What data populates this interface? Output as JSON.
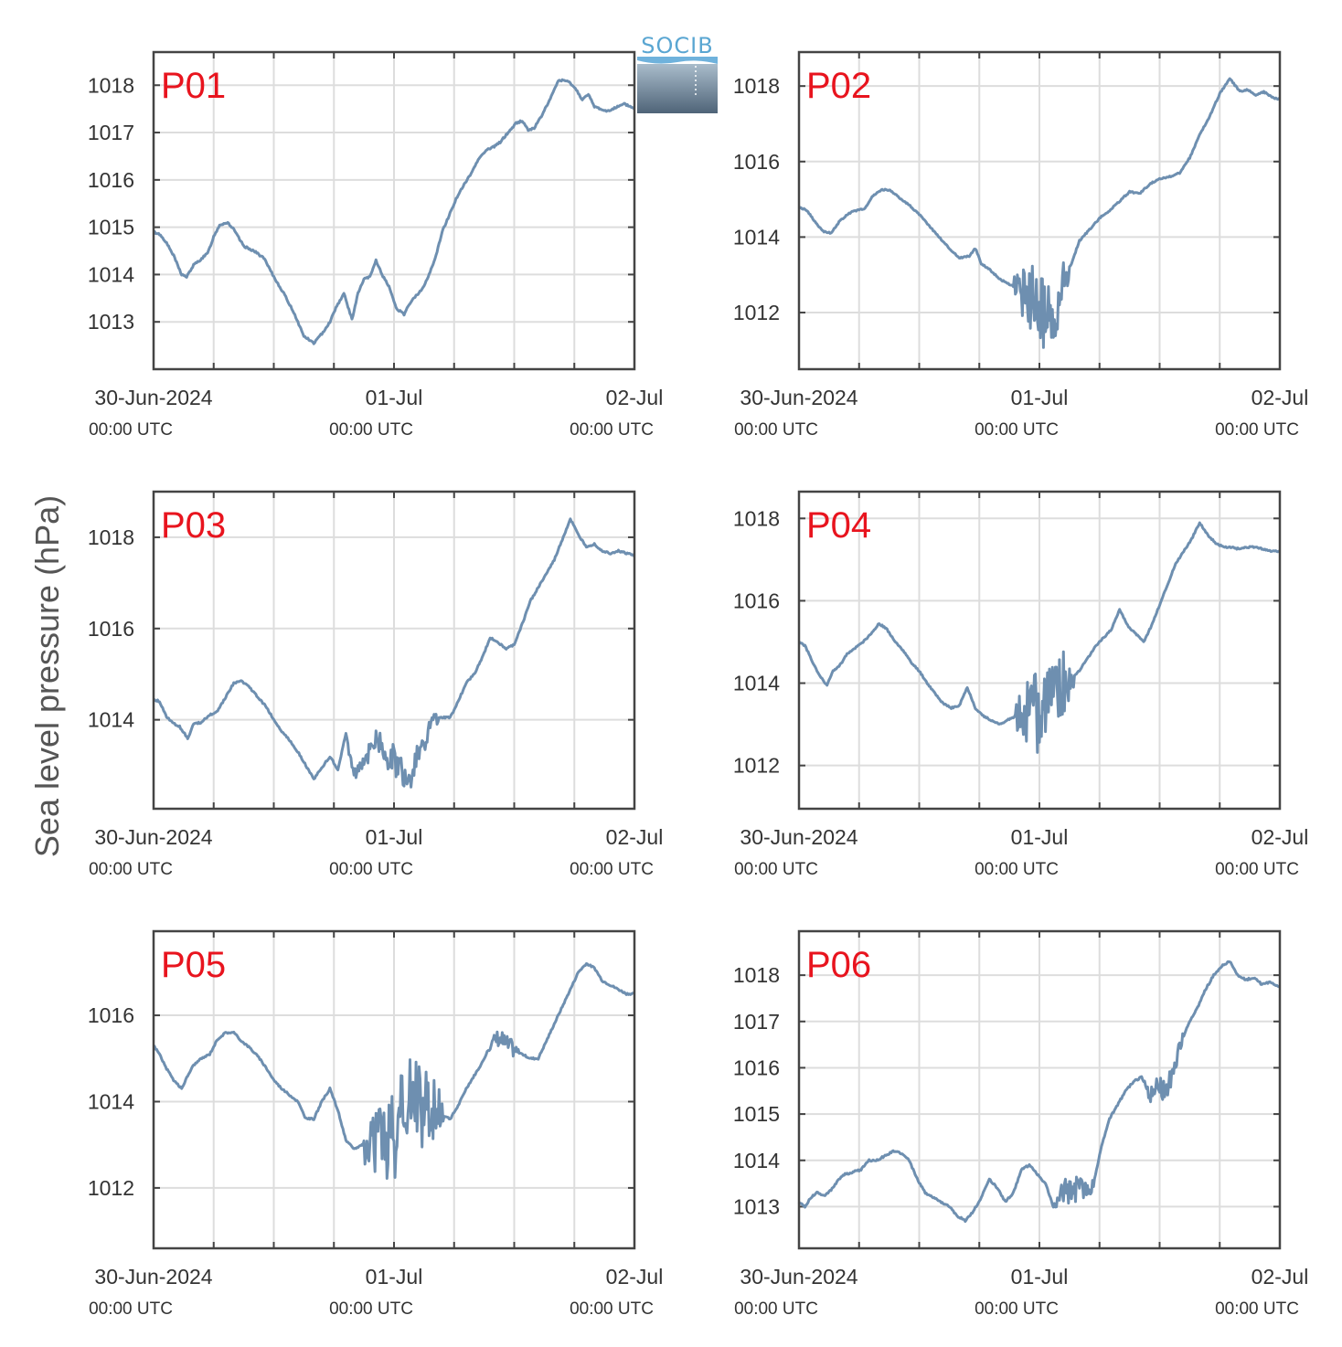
{
  "figure": {
    "ylabel": "Sea level pressure (hPa)",
    "logo_text": "SOCIB"
  },
  "colors": {
    "line": "#6e8fb0",
    "grid": "#dddddd",
    "axis": "#444444",
    "panel_label": "#e8141e"
  },
  "chart_data": [
    {
      "type": "line",
      "label": "P01",
      "x_ticks": [
        "30-Jun-2024",
        "01-Jul",
        "02-Jul"
      ],
      "x_tick_times": [
        "00:00 UTC",
        "00:00 UTC",
        "00:00 UTC"
      ],
      "xlim": [
        0,
        48
      ],
      "ylim": [
        1012.0,
        1018.7
      ],
      "yticks": [
        1013,
        1014,
        1015,
        1016,
        1017,
        1018
      ],
      "grid": true,
      "noise": [],
      "series": [
        {
          "x": [
            0,
            0.6,
            1.2,
            2,
            2.8,
            3.3,
            4,
            4.6,
            5.4,
            6,
            6.6,
            7.4,
            8,
            9,
            10,
            11,
            12,
            13,
            14,
            15,
            16,
            16.8,
            17.6,
            18.2,
            19,
            19.8,
            20.4,
            21,
            21.6,
            22.2,
            22.8,
            23.6,
            24.2,
            25,
            25.6,
            26.4,
            27,
            27.6,
            28.2,
            28.8,
            29.6,
            30.2,
            31,
            31.6,
            32.2,
            32.8,
            33.4,
            34,
            34.6,
            35.2,
            35.6,
            36.2,
            36.8,
            37.4,
            38,
            38.6,
            39.2,
            39.8,
            40.4,
            41,
            41.6,
            42.2,
            42.8,
            43.4,
            44,
            44.6,
            45.2,
            45.8,
            46.4,
            47,
            47.6,
            48
          ],
          "y": [
            1014.9,
            1014.85,
            1014.7,
            1014.4,
            1014.0,
            1013.95,
            1014.2,
            1014.3,
            1014.45,
            1014.8,
            1015.05,
            1015.1,
            1014.95,
            1014.6,
            1014.5,
            1014.35,
            1013.95,
            1013.6,
            1013.2,
            1012.7,
            1012.55,
            1012.75,
            1013.0,
            1013.3,
            1013.6,
            1013.05,
            1013.6,
            1013.9,
            1013.95,
            1014.3,
            1014.0,
            1013.7,
            1013.3,
            1013.15,
            1013.4,
            1013.6,
            1013.75,
            1014.05,
            1014.4,
            1014.9,
            1015.3,
            1015.6,
            1015.9,
            1016.1,
            1016.35,
            1016.55,
            1016.65,
            1016.7,
            1016.8,
            1016.95,
            1017.05,
            1017.2,
            1017.25,
            1017.05,
            1017.1,
            1017.3,
            1017.55,
            1017.8,
            1018.1,
            1018.1,
            1018.05,
            1017.9,
            1017.7,
            1017.8,
            1017.55,
            1017.5,
            1017.45,
            1017.5,
            1017.55,
            1017.6,
            1017.55,
            1017.5
          ]
        }
      ]
    },
    {
      "type": "line",
      "label": "P02",
      "x_ticks": [
        "30-Jun-2024",
        "01-Jul",
        "02-Jul"
      ],
      "x_tick_times": [
        "00:00 UTC",
        "00:00 UTC",
        "00:00 UTC"
      ],
      "xlim": [
        0,
        48
      ],
      "ylim": [
        1010.5,
        1018.9
      ],
      "yticks": [
        1012,
        1014,
        1016,
        1018
      ],
      "grid": true,
      "noise": [
        [
          21.5,
          27.0,
          1.0
        ]
      ],
      "series": [
        {
          "x": [
            0,
            0.8,
            1.6,
            2.4,
            3.2,
            4,
            4.8,
            5.6,
            6.6,
            7.4,
            8.2,
            9,
            10,
            11,
            12,
            13,
            14,
            15,
            16,
            17,
            17.6,
            18.2,
            19,
            20,
            20.6,
            21.4,
            22.2,
            23,
            24,
            24.8,
            25.6,
            26.4,
            27.2,
            28,
            29,
            30,
            31,
            32,
            33,
            34,
            35,
            36,
            37,
            38,
            39,
            40,
            41,
            42,
            43,
            44,
            44.8,
            45.6,
            46.4,
            47.2,
            48
          ],
          "y": [
            1014.8,
            1014.7,
            1014.4,
            1014.15,
            1014.1,
            1014.4,
            1014.6,
            1014.7,
            1014.75,
            1015.1,
            1015.25,
            1015.25,
            1015.05,
            1014.85,
            1014.6,
            1014.3,
            1014.0,
            1013.7,
            1013.45,
            1013.5,
            1013.7,
            1013.3,
            1013.15,
            1012.9,
            1012.8,
            1012.7,
            1012.5,
            1012.4,
            1012.2,
            1011.9,
            1011.6,
            1012.9,
            1013.3,
            1013.9,
            1014.2,
            1014.5,
            1014.7,
            1014.95,
            1015.2,
            1015.15,
            1015.4,
            1015.55,
            1015.6,
            1015.7,
            1016.1,
            1016.7,
            1017.2,
            1017.8,
            1018.2,
            1017.85,
            1017.9,
            1017.75,
            1017.85,
            1017.7,
            1017.65
          ]
        }
      ]
    },
    {
      "type": "line",
      "label": "P03",
      "x_ticks": [
        "30-Jun-2024",
        "01-Jul",
        "02-Jul"
      ],
      "x_tick_times": [
        "00:00 UTC",
        "00:00 UTC",
        "00:00 UTC"
      ],
      "xlim": [
        0,
        48
      ],
      "ylim": [
        1012.05,
        1019.0
      ],
      "yticks": [
        1014,
        1016,
        1018
      ],
      "grid": true,
      "noise": [
        [
          19.5,
          28.5,
          0.35
        ]
      ],
      "series": [
        {
          "x": [
            0,
            0.6,
            1.2,
            1.8,
            2.6,
            3.4,
            4,
            4.8,
            5.6,
            6.4,
            7.2,
            8,
            8.8,
            9.6,
            10.4,
            11.2,
            12,
            12.8,
            13.6,
            14.4,
            15.2,
            16,
            16.8,
            17.6,
            18.4,
            19.2,
            20,
            20.8,
            21.6,
            22.4,
            23.2,
            24,
            24.8,
            25.6,
            26.4,
            27.2,
            28,
            28.8,
            29.6,
            30.4,
            31.2,
            32,
            32.8,
            33.6,
            34.4,
            35.2,
            36,
            36.8,
            37.6,
            38.4,
            39.2,
            40,
            40.8,
            41.6,
            42.4,
            43.2,
            44,
            44.8,
            45.6,
            46.4,
            47.2,
            48
          ],
          "y": [
            1014.45,
            1014.4,
            1014.1,
            1013.95,
            1013.85,
            1013.6,
            1013.9,
            1013.95,
            1014.1,
            1014.2,
            1014.5,
            1014.8,
            1014.85,
            1014.7,
            1014.5,
            1014.3,
            1014.0,
            1013.75,
            1013.55,
            1013.3,
            1013.0,
            1012.7,
            1012.95,
            1013.2,
            1012.9,
            1013.7,
            1012.75,
            1013.05,
            1013.4,
            1013.5,
            1013.3,
            1013.15,
            1012.85,
            1012.7,
            1013.3,
            1013.6,
            1014.0,
            1014.05,
            1014.05,
            1014.4,
            1014.8,
            1015.0,
            1015.35,
            1015.8,
            1015.7,
            1015.55,
            1015.65,
            1016.1,
            1016.6,
            1016.9,
            1017.2,
            1017.5,
            1017.95,
            1018.4,
            1018.05,
            1017.8,
            1017.85,
            1017.7,
            1017.65,
            1017.7,
            1017.65,
            1017.6
          ]
        }
      ]
    },
    {
      "type": "line",
      "label": "P04",
      "x_ticks": [
        "30-Jun-2024",
        "01-Jul",
        "02-Jul"
      ],
      "x_tick_times": [
        "00:00 UTC",
        "00:00 UTC",
        "00:00 UTC"
      ],
      "xlim": [
        0,
        48
      ],
      "ylim": [
        1010.95,
        1018.65
      ],
      "yticks": [
        1012,
        1014,
        1016,
        1018
      ],
      "grid": true,
      "noise": [
        [
          21.5,
          27.5,
          1.1
        ]
      ],
      "series": [
        {
          "x": [
            0,
            0.6,
            1.2,
            2,
            2.8,
            3.4,
            4,
            4.8,
            5.6,
            6.4,
            7.2,
            8,
            8.8,
            9.6,
            10.4,
            11.2,
            12,
            12.8,
            13.6,
            14.4,
            15.2,
            16,
            16.8,
            17.6,
            18.4,
            19.2,
            20,
            20.8,
            21.6,
            22.4,
            23.2,
            24,
            24.8,
            25.6,
            26.4,
            27.2,
            28,
            28.8,
            29.6,
            30.4,
            31.2,
            32,
            32.8,
            33.6,
            34.4,
            35.2,
            36,
            36.8,
            37.6,
            38.4,
            39.2,
            40,
            40.8,
            41.6,
            42.4,
            43.2,
            44,
            44.8,
            45.6,
            46.4,
            47.2,
            48
          ],
          "y": [
            1015.0,
            1014.9,
            1014.6,
            1014.2,
            1013.95,
            1014.3,
            1014.4,
            1014.7,
            1014.85,
            1015.0,
            1015.2,
            1015.45,
            1015.3,
            1015.0,
            1014.8,
            1014.5,
            1014.3,
            1014.0,
            1013.75,
            1013.5,
            1013.4,
            1013.45,
            1013.9,
            1013.4,
            1013.2,
            1013.1,
            1013.0,
            1013.1,
            1013.2,
            1013.3,
            1013.2,
            1013.4,
            1013.7,
            1013.85,
            1014.0,
            1014.1,
            1014.3,
            1014.6,
            1014.9,
            1015.1,
            1015.3,
            1015.8,
            1015.4,
            1015.2,
            1015.0,
            1015.4,
            1015.9,
            1016.4,
            1016.9,
            1017.2,
            1017.5,
            1017.9,
            1017.6,
            1017.4,
            1017.3,
            1017.3,
            1017.25,
            1017.3,
            1017.3,
            1017.25,
            1017.2,
            1017.2
          ]
        }
      ]
    },
    {
      "type": "line",
      "label": "P05",
      "x_ticks": [
        "30-Jun-2024",
        "01-Jul",
        "02-Jul"
      ],
      "x_tick_times": [
        "00:00 UTC",
        "00:00 UTC",
        "00:00 UTC"
      ],
      "xlim": [
        0,
        48
      ],
      "ylim": [
        1010.6,
        1017.95
      ],
      "yticks": [
        1012,
        1014,
        1016
      ],
      "grid": true,
      "noise": [
        [
          21.0,
          29.0,
          1.2
        ],
        [
          33.5,
          36.5,
          0.25
        ]
      ],
      "series": [
        {
          "x": [
            0,
            0.6,
            1.2,
            2,
            2.8,
            3.4,
            4,
            4.8,
            5.6,
            6.4,
            7.2,
            8,
            8.8,
            9.6,
            10.4,
            11.2,
            12,
            12.8,
            13.6,
            14.4,
            15.2,
            16,
            16.8,
            17.6,
            18.4,
            19.2,
            20,
            20.8,
            21.6,
            22.4,
            23.2,
            24,
            24.8,
            25.6,
            26.4,
            27.2,
            28,
            28.8,
            29.6,
            30.4,
            31.2,
            32,
            32.8,
            33.6,
            34.4,
            35.2,
            36,
            36.8,
            37.6,
            38.4,
            39.2,
            40,
            40.8,
            41.6,
            42.4,
            43.2,
            44,
            44.8,
            45.6,
            46.4,
            47.2,
            48
          ],
          "y": [
            1015.3,
            1015.1,
            1014.8,
            1014.5,
            1014.3,
            1014.6,
            1014.85,
            1015.0,
            1015.1,
            1015.45,
            1015.6,
            1015.6,
            1015.4,
            1015.25,
            1015.05,
            1014.8,
            1014.5,
            1014.3,
            1014.15,
            1014.0,
            1013.6,
            1013.6,
            1014.0,
            1014.3,
            1013.8,
            1013.1,
            1012.9,
            1013.0,
            1012.9,
            1013.0,
            1013.2,
            1013.3,
            1013.5,
            1013.8,
            1013.9,
            1014.0,
            1013.8,
            1013.7,
            1013.6,
            1013.9,
            1014.3,
            1014.6,
            1014.9,
            1015.3,
            1015.5,
            1015.3,
            1015.2,
            1015.1,
            1015.0,
            1015.0,
            1015.4,
            1015.8,
            1016.2,
            1016.6,
            1017.0,
            1017.2,
            1017.1,
            1016.8,
            1016.7,
            1016.6,
            1016.5,
            1016.5
          ]
        }
      ]
    },
    {
      "type": "line",
      "label": "P06",
      "x_ticks": [
        "30-Jun-2024",
        "01-Jul",
        "02-Jul"
      ],
      "x_tick_times": [
        "00:00 UTC",
        "00:00 UTC",
        "00:00 UTC"
      ],
      "xlim": [
        0,
        48
      ],
      "ylim": [
        1012.1,
        1018.95
      ],
      "yticks": [
        1013,
        1014,
        1015,
        1016,
        1017,
        1018
      ],
      "grid": true,
      "noise": [
        [
          25.5,
          29.5,
          0.35
        ],
        [
          34.5,
          38.5,
          0.25
        ]
      ],
      "series": [
        {
          "x": [
            0,
            0.6,
            1.2,
            1.8,
            2.6,
            3.4,
            4,
            4.6,
            5.4,
            6.2,
            7,
            7.8,
            8.6,
            9.4,
            10.2,
            11,
            11.8,
            12.6,
            13.4,
            14.2,
            15,
            15.8,
            16.6,
            17.4,
            18.2,
            19,
            19.8,
            20.6,
            21.4,
            22.2,
            23,
            23.8,
            24.6,
            25.4,
            26.2,
            27,
            27.8,
            28.6,
            29.4,
            30.2,
            31,
            31.8,
            32.6,
            33.4,
            34.2,
            35,
            35.8,
            36.6,
            37.4,
            38.2,
            39,
            39.8,
            40.6,
            41.4,
            42.2,
            43,
            43.8,
            44.6,
            45.4,
            46.2,
            47,
            48
          ],
          "y": [
            1013.1,
            1013.0,
            1013.2,
            1013.3,
            1013.25,
            1013.4,
            1013.6,
            1013.7,
            1013.75,
            1013.8,
            1014.0,
            1014.0,
            1014.1,
            1014.2,
            1014.15,
            1014.0,
            1013.6,
            1013.3,
            1013.2,
            1013.1,
            1013.0,
            1012.8,
            1012.7,
            1012.9,
            1013.2,
            1013.6,
            1013.4,
            1013.1,
            1013.3,
            1013.8,
            1013.9,
            1013.7,
            1013.5,
            1013.0,
            1013.3,
            1013.4,
            1013.4,
            1013.3,
            1013.5,
            1014.3,
            1014.9,
            1015.2,
            1015.5,
            1015.7,
            1015.8,
            1015.4,
            1015.6,
            1015.4,
            1016.0,
            1016.6,
            1017.0,
            1017.3,
            1017.7,
            1018.0,
            1018.2,
            1018.3,
            1018.0,
            1017.9,
            1017.95,
            1017.8,
            1017.85,
            1017.75
          ]
        }
      ]
    }
  ]
}
